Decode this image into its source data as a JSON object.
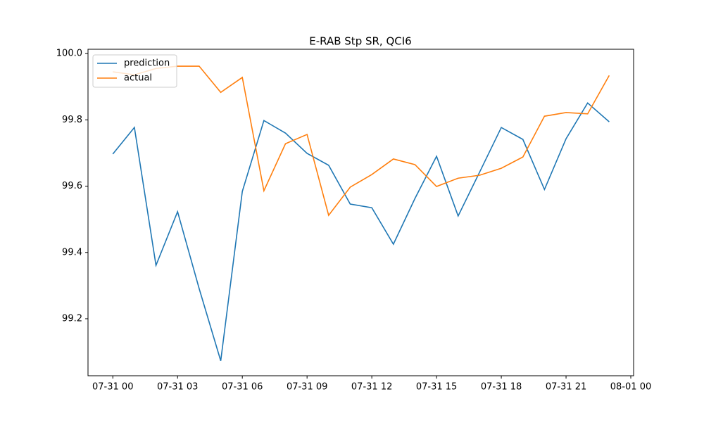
{
  "chart_data": {
    "type": "line",
    "title": "E-RAB Stp SR, QCI6",
    "x": [
      "07-31 00",
      "07-31 01",
      "07-31 02",
      "07-31 03",
      "07-31 04",
      "07-31 05",
      "07-31 06",
      "07-31 07",
      "07-31 08",
      "07-31 09",
      "07-31 10",
      "07-31 11",
      "07-31 12",
      "07-31 13",
      "07-31 14",
      "07-31 15",
      "07-31 16",
      "07-31 17",
      "07-31 18",
      "07-31 19",
      "07-31 20",
      "07-31 21",
      "07-31 22",
      "07-31 23"
    ],
    "series": [
      {
        "name": "prediction",
        "color": "#1f77b4",
        "values": [
          99.697,
          99.777,
          99.361,
          99.523,
          99.291,
          99.073,
          99.584,
          99.798,
          99.76,
          99.699,
          99.663,
          99.546,
          99.535,
          99.425,
          99.563,
          99.69,
          99.51,
          99.643,
          99.777,
          99.741,
          99.59,
          99.743,
          99.851,
          99.794
        ]
      },
      {
        "name": "actual",
        "color": "#ff7f0e",
        "values": [
          99.945,
          99.936,
          99.955,
          99.962,
          99.962,
          99.883,
          99.928,
          99.586,
          99.728,
          99.756,
          99.512,
          99.597,
          99.635,
          99.682,
          99.665,
          99.599,
          99.624,
          99.633,
          99.654,
          99.688,
          99.811,
          99.822,
          99.818,
          99.934
        ]
      }
    ],
    "xlim": [
      "07-30 22.85",
      "08-01 00.13"
    ],
    "xticks": [
      "07-31 00",
      "07-31 03",
      "07-31 06",
      "07-31 09",
      "07-31 12",
      "07-31 15",
      "07-31 18",
      "07-31 21",
      "08-01 00"
    ],
    "ylim": [
      99.028,
      100.013
    ],
    "yticks": [
      {
        "value": 99.2,
        "label": "99.2"
      },
      {
        "value": 99.4,
        "label": "99.4"
      },
      {
        "value": 99.6,
        "label": "99.6"
      },
      {
        "value": 99.8,
        "label": "99.8"
      },
      {
        "value": 100,
        "label": "100.0"
      }
    ],
    "legend": "upper left"
  }
}
